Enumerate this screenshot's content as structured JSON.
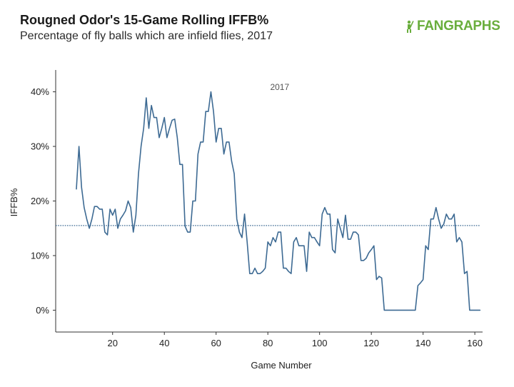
{
  "header": {
    "title": "Rougned Odor's 15-Game Rolling IFFB%",
    "subtitle": "Percentage of fly balls which are infield flies, 2017"
  },
  "logo": {
    "text": "FANGRAPHS",
    "icon": "fangraphs-batter-icon",
    "color": "#6aae3d"
  },
  "chart_data": {
    "type": "line",
    "panel_label": "2017",
    "xlabel": "Game Number",
    "ylabel": "IFFB%",
    "xlim": [
      -2,
      163
    ],
    "ylim": [
      -4,
      44
    ],
    "x_ticks": [
      20,
      40,
      60,
      80,
      100,
      120,
      140,
      160
    ],
    "y_ticks": [
      0,
      10,
      20,
      30,
      40
    ],
    "y_tick_labels": [
      "0%",
      "10%",
      "20%",
      "30%",
      "40%"
    ],
    "grid": false,
    "line_color": "#3d6a93",
    "reference_line": {
      "y": 15.5,
      "style": "dotted",
      "color": "#3d6a93"
    },
    "series": [
      {
        "x": [
          6,
          7,
          8,
          9,
          10,
          11,
          12,
          13,
          14,
          15,
          16,
          17,
          18,
          19,
          20,
          21,
          22,
          23,
          24,
          25,
          26,
          27,
          28,
          29,
          30,
          31,
          32,
          33,
          34,
          35,
          36,
          37,
          38,
          39,
          40,
          41,
          42,
          43,
          44,
          45,
          46,
          47,
          48,
          49,
          50,
          51,
          52,
          53,
          54,
          55,
          56,
          57,
          58,
          59,
          60,
          61,
          62,
          63,
          64,
          65,
          66,
          67,
          68,
          69,
          70,
          71,
          72,
          73,
          74,
          75,
          76,
          77,
          78,
          79,
          80,
          81,
          82,
          83,
          84,
          85,
          86,
          87,
          88,
          89,
          90,
          91,
          92,
          93,
          94,
          95,
          96,
          97,
          98,
          99,
          100,
          101,
          102,
          103,
          104,
          105,
          106,
          107,
          108,
          109,
          110,
          111,
          112,
          113,
          114,
          115,
          116,
          117,
          118,
          119,
          120,
          121,
          122,
          123,
          124,
          125,
          126,
          127,
          128,
          129,
          130,
          131,
          132,
          133,
          134,
          135,
          136,
          137,
          138,
          139,
          140,
          141,
          142,
          143,
          144,
          145,
          146,
          147,
          148,
          149,
          150,
          151,
          152,
          153,
          154,
          155,
          156,
          157,
          158,
          159,
          160,
          161,
          162
        ],
        "y": [
          22.2,
          30.0,
          22.5,
          18.8,
          16.7,
          15.0,
          16.7,
          19.0,
          19.0,
          18.5,
          18.5,
          14.3,
          13.8,
          18.5,
          17.4,
          18.5,
          15.0,
          16.7,
          17.4,
          18.2,
          20.0,
          18.8,
          14.3,
          17.4,
          25.0,
          30.0,
          33.3,
          38.9,
          33.3,
          37.5,
          35.3,
          35.3,
          31.6,
          33.3,
          35.3,
          31.6,
          33.3,
          34.8,
          35.0,
          31.6,
          26.7,
          26.7,
          15.4,
          14.3,
          14.3,
          20.0,
          20.0,
          28.6,
          30.8,
          30.8,
          36.4,
          36.4,
          40.0,
          36.4,
          30.8,
          33.3,
          33.3,
          28.6,
          30.8,
          30.8,
          27.3,
          25.0,
          16.7,
          14.3,
          13.3,
          17.6,
          12.5,
          6.7,
          6.7,
          7.7,
          6.7,
          6.7,
          7.1,
          7.7,
          12.5,
          11.8,
          13.3,
          12.5,
          14.3,
          14.3,
          7.7,
          7.7,
          7.1,
          6.7,
          12.5,
          13.3,
          11.8,
          11.8,
          11.8,
          7.1,
          14.3,
          13.3,
          13.3,
          12.5,
          11.8,
          17.6,
          18.8,
          17.6,
          17.6,
          11.1,
          10.5,
          16.7,
          15.0,
          13.3,
          17.4,
          13.0,
          13.0,
          14.3,
          14.3,
          13.8,
          9.1,
          9.1,
          9.5,
          10.5,
          11.1,
          11.8,
          5.6,
          6.2,
          5.9,
          0,
          0,
          0,
          0,
          0,
          0,
          0,
          0,
          0,
          0,
          0,
          0,
          0,
          4.5,
          5.0,
          5.6,
          11.8,
          11.1,
          16.7,
          16.7,
          18.8,
          16.7,
          15.0,
          15.8,
          17.6,
          16.7,
          16.7,
          17.6,
          12.5,
          13.3,
          12.5,
          6.7,
          7.1,
          0,
          0,
          0,
          0,
          0
        ]
      }
    ]
  }
}
